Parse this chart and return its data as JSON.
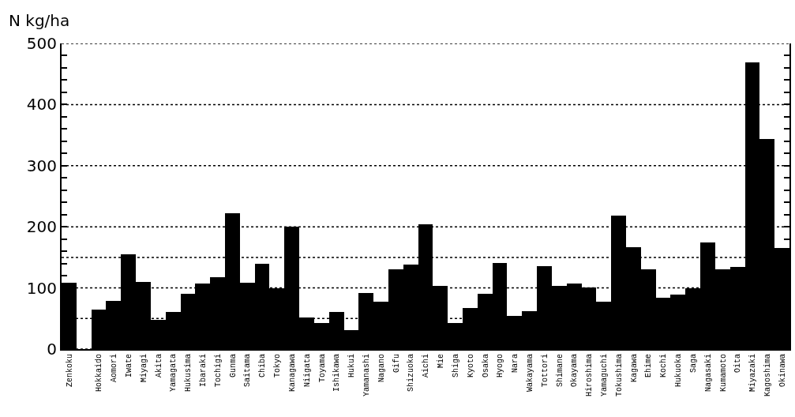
{
  "chart_data": {
    "type": "bar",
    "ylabel": "N kg/ha",
    "categories": [
      "Zenkoku",
      null,
      "Hokkaido",
      "Aomori",
      "Iwate",
      "Miyagi",
      "Akita",
      "Yamagata",
      "Hukusima",
      "Ibaraki",
      "Tochigi",
      "Gunma",
      "Saitama",
      "Chiba",
      "Tokyo",
      "Kanagawa",
      "Niigata",
      "Toyama",
      "Ishikawa",
      "Hukui",
      "Yamanashi",
      "Nagano",
      "Gifu",
      "Shizuoka",
      "Aichi",
      "Mie",
      "Shiga",
      "Kyoto",
      "Osaka",
      "Hyogo",
      "Nara",
      "Wakayama",
      "Tottori",
      "Shimane",
      "Okayama",
      "Hiroshima",
      "Yamaguchi",
      "Tokushima",
      "Kagawa",
      "Ehime",
      "Kochi",
      "Hukuoka",
      "Saga",
      "Nagasaki",
      "Kumamoto",
      "Oita",
      "Miyazaki",
      "Kagoshima",
      "Okinawa"
    ],
    "values": [
      109,
      null,
      65,
      79,
      155,
      110,
      48,
      61,
      90,
      107,
      117,
      222,
      109,
      140,
      99,
      200,
      52,
      43,
      61,
      31,
      92,
      78,
      131,
      138,
      204,
      103,
      43,
      67,
      90,
      141,
      54,
      62,
      136,
      103,
      107,
      101,
      78,
      218,
      167,
      130,
      84,
      89,
      99,
      175,
      130,
      134,
      469,
      344,
      166
    ],
    "color": "#000000",
    "ylim": [
      0,
      500
    ],
    "yticks": [
      0,
      {
        "value": 20,
        "label": null
      },
      {
        "value": 40,
        "label": null
      },
      {
        "value": 60,
        "label": null
      },
      {
        "value": 80,
        "label": null
      },
      100,
      {
        "value": 120,
        "label": null
      },
      {
        "value": 140,
        "label": null
      },
      {
        "value": 160,
        "label": null
      },
      {
        "value": 180,
        "label": null
      },
      200,
      {
        "value": 220,
        "label": null
      },
      {
        "value": 240,
        "label": null
      },
      {
        "value": 260,
        "label": null
      },
      {
        "value": 280,
        "label": null
      },
      300,
      {
        "value": 320,
        "label": null
      },
      {
        "value": 340,
        "label": null
      },
      {
        "value": 360,
        "label": null
      },
      {
        "value": 380,
        "label": null
      },
      400,
      {
        "value": 420,
        "label": null
      },
      {
        "value": 440,
        "label": null
      },
      {
        "value": 460,
        "label": null
      },
      {
        "value": 480,
        "label": null
      },
      500
    ],
    "ref_lines": [
      {
        "axis": "y",
        "value": 150,
        "line_style": "dotted"
      },
      {
        "axis": "y",
        "value": 50,
        "line_style": "dotted"
      }
    ],
    "grid": "y"
  }
}
